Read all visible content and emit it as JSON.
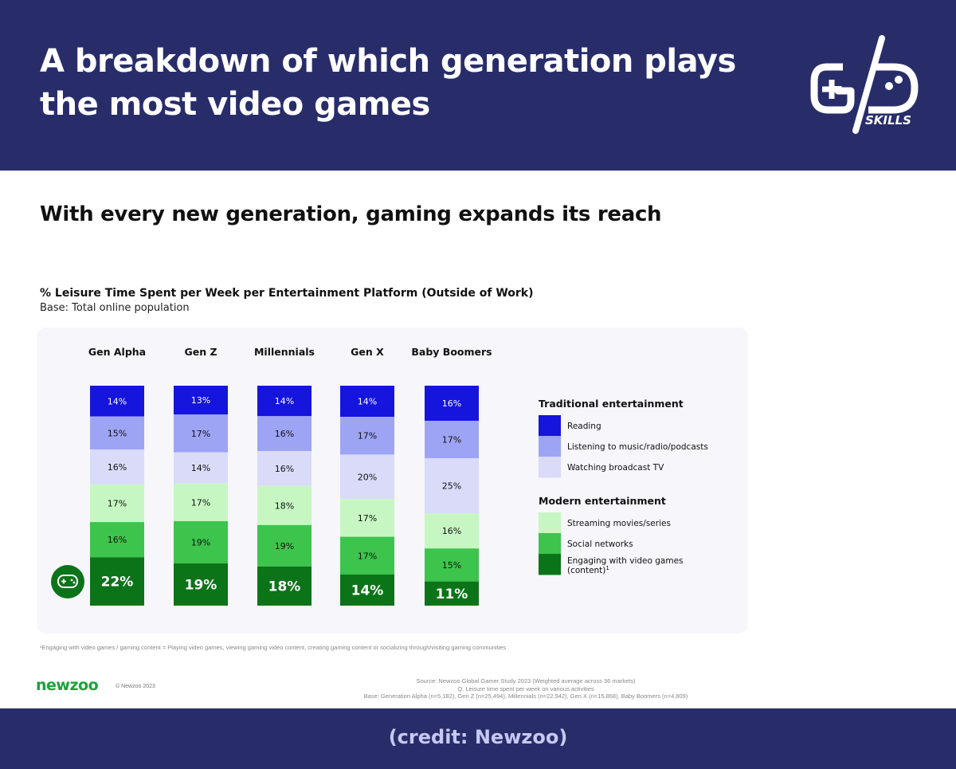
{
  "header": {
    "title": "A breakdown of which generation plays the most video games",
    "logo_text": "SKILLS"
  },
  "subtitle": "With every new generation, gaming expands its reach",
  "footnote": "¹Engaging with video games / gaming content = Playing video games, viewing gaming video content, creating gaming content or socializing through/visiting gaming communities",
  "brand": {
    "name": "newzoo",
    "copyright": "© Newzoo 2023"
  },
  "source": {
    "line1": "Source: Newzoo Global Gamer Study 2023 (Weighted average across 36 markets)",
    "line2": "Q. Leisure time spent per week on various activities",
    "line3": "Base: Generation Alpha (n=5,182), Gen Z (n=25,494), Millennials (n=22,942), Gen X (n=15,868), Baby Boomers (n=4,809)"
  },
  "credit": "(credit: Newzoo)",
  "colors": {
    "header_bg": "#282d6a",
    "reading": "#1515de",
    "listening": "#9ea4f4",
    "tv": "#d9dbf9",
    "streaming": "#c6f7c2",
    "social": "#3cc44c",
    "games": "#0b7418",
    "brand_green": "#1aa33a"
  },
  "chart_data": {
    "type": "bar",
    "stacked": true,
    "normalized": true,
    "title": "% Leisure Time Spent per Week per Entertainment Platform (Outside of Work)",
    "subtitle": "Base: Total online population",
    "categories": [
      "Gen Alpha",
      "Gen Z",
      "Millennials",
      "Gen X",
      "Baby Boomers"
    ],
    "series": [
      {
        "name": "Reading",
        "group": "Traditional entertainment",
        "color": "#1515de",
        "text_color": "#ffffff",
        "values": [
          14,
          13,
          14,
          14,
          16
        ]
      },
      {
        "name": "Listening to music/radio/podcasts",
        "group": "Traditional entertainment",
        "color": "#9ea4f4",
        "text_color": "#111111",
        "values": [
          15,
          17,
          16,
          17,
          17
        ]
      },
      {
        "name": "Watching broadcast TV",
        "group": "Traditional entertainment",
        "color": "#d9dbf9",
        "text_color": "#111111",
        "values": [
          16,
          14,
          16,
          20,
          25
        ]
      },
      {
        "name": "Streaming movies/series",
        "group": "Modern entertainment",
        "color": "#c6f7c2",
        "text_color": "#111111",
        "values": [
          17,
          17,
          18,
          17,
          16
        ]
      },
      {
        "name": "Social networks",
        "group": "Modern entertainment",
        "color": "#3cc44c",
        "text_color": "#111111",
        "values": [
          16,
          19,
          19,
          17,
          15
        ]
      },
      {
        "name": "Engaging with video games (content)",
        "superscript": "1",
        "group": "Modern entertainment",
        "color": "#0b7418",
        "text_color": "#ffffff",
        "values": [
          22,
          19,
          18,
          14,
          11
        ]
      }
    ],
    "legend_groups": [
      "Traditional entertainment",
      "Modern entertainment"
    ],
    "legend_position": "right",
    "value_suffix": "%",
    "grid": false
  }
}
